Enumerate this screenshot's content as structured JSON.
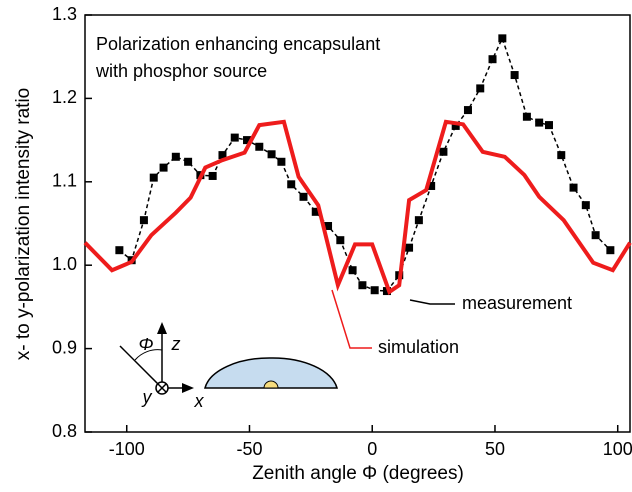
{
  "chart_data": {
    "type": "line",
    "annotation": [
      "Polarization enhancing encapsulant",
      "with phosphor source"
    ],
    "xlabel": "Zenith angle Φ (degrees)",
    "ylabel": "x- to y-polarization intensity ratio",
    "inset_labels": [
      "Φ",
      "z",
      "y",
      "x"
    ],
    "xlim": [
      -117,
      105
    ],
    "ylim": [
      0.8,
      1.3
    ],
    "xticks": [
      -100,
      -50,
      0,
      50,
      100
    ],
    "yticks": [
      0.8,
      0.9,
      {
        "value": 1.0,
        "label": "1.0"
      },
      1.1,
      1.2,
      1.3
    ],
    "series": [
      {
        "name": "measurement",
        "color": "#000000",
        "dashed": true,
        "markers": true,
        "x": [
          -103,
          -98,
          -93,
          -89,
          -85,
          -80,
          -75,
          -70,
          -65,
          -61,
          -56,
          -51,
          -46,
          -41,
          -37,
          -33,
          -28,
          -23,
          -18,
          -13,
          -8,
          -4,
          1,
          6,
          11,
          15,
          19,
          24,
          29,
          34,
          39,
          44,
          49,
          53,
          58,
          63,
          68,
          72,
          77,
          82,
          87,
          91,
          97
        ],
        "values": [
          1.018,
          1.006,
          1.054,
          1.105,
          1.117,
          1.13,
          1.124,
          1.108,
          1.107,
          1.132,
          1.153,
          1.15,
          1.142,
          1.133,
          1.124,
          1.097,
          1.082,
          1.064,
          1.047,
          1.03,
          0.994,
          0.976,
          0.97,
          0.969,
          0.988,
          1.021,
          1.054,
          1.095,
          1.136,
          1.167,
          1.186,
          1.212,
          1.247,
          1.272,
          1.228,
          1.178,
          1.171,
          1.168,
          1.132,
          1.093,
          1.072,
          1.036,
          1.018
        ]
      },
      {
        "name": "simulation",
        "color": "#ee1c1c",
        "dashed": false,
        "markers": false,
        "x": [
          -117,
          -106,
          -98,
          -90,
          -80,
          -74,
          -68,
          -61,
          -52,
          -46,
          -36,
          -30,
          -22,
          -14,
          -7,
          0,
          7,
          11,
          15,
          22,
          30,
          37,
          45,
          54,
          62,
          68,
          78,
          90,
          98,
          105
        ],
        "values": [
          1.027,
          0.994,
          1.004,
          1.036,
          1.063,
          1.081,
          1.117,
          1.126,
          1.135,
          1.168,
          1.172,
          1.106,
          1.072,
          0.976,
          1.025,
          1.025,
          0.968,
          0.976,
          1.078,
          1.09,
          1.172,
          1.169,
          1.136,
          1.13,
          1.108,
          1.082,
          1.054,
          1.003,
          0.994,
          1.027
        ]
      }
    ]
  }
}
